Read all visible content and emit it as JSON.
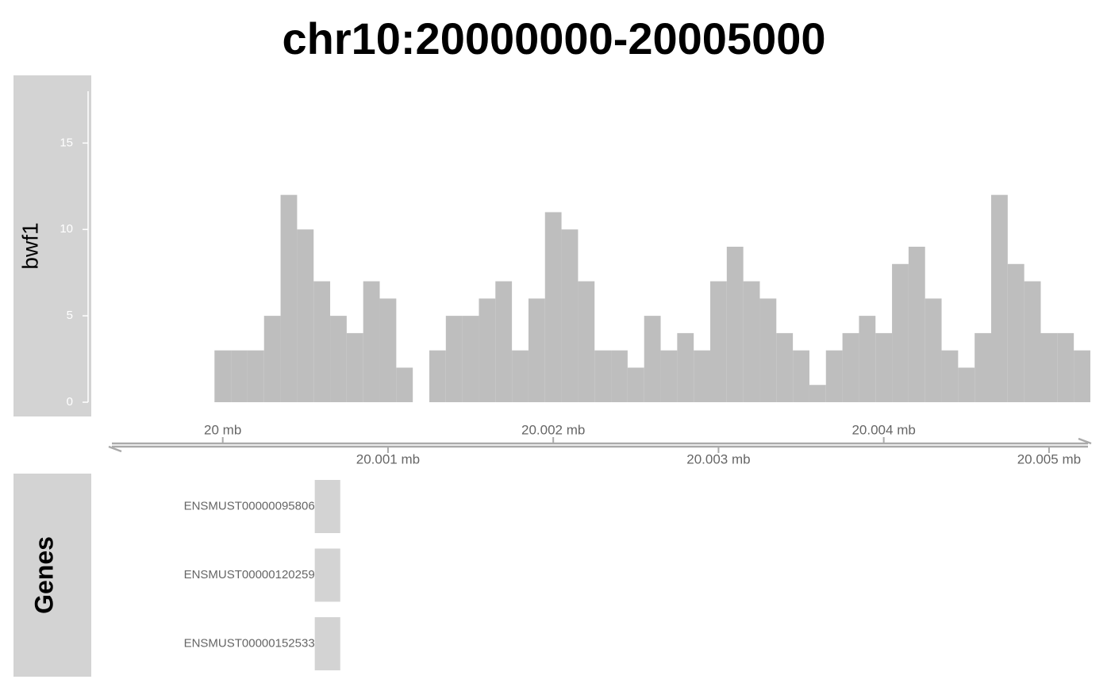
{
  "chart_data": [
    {
      "type": "histogram",
      "title": "chr10:20000000-20005000",
      "ylabel": "bwf1",
      "color": "#bebebe",
      "bins": [
        19999950,
        20000050,
        20000150,
        20000250,
        20000350,
        20000450,
        20000550,
        20000650,
        20000750,
        20000850,
        20000950,
        20001050,
        20001150,
        20001250,
        20001350,
        20001450,
        20001550,
        20001650,
        20001750,
        20001850,
        20001950,
        20002050,
        20002150,
        20002250,
        20002350,
        20002450,
        20002550,
        20002650,
        20002750,
        20002850,
        20002950,
        20003050,
        20003150,
        20003250,
        20003350,
        20003450,
        20003550,
        20003650,
        20003750,
        20003850,
        20003950,
        20004050,
        20004150,
        20004250,
        20004350,
        20004450,
        20004550,
        20004650,
        20004750,
        20004850,
        20004950,
        20005050,
        20005150,
        20005250
      ],
      "counts": [
        3,
        3,
        3,
        5,
        12,
        10,
        7,
        5,
        4,
        7,
        6,
        2,
        0,
        3,
        5,
        5,
        6,
        7,
        3,
        6,
        11,
        10,
        7,
        3,
        3,
        2,
        5,
        3,
        4,
        3,
        7,
        9,
        7,
        6,
        4,
        3,
        1,
        3,
        4,
        5,
        4,
        8,
        9,
        6,
        3,
        2,
        4,
        12,
        8,
        7,
        4,
        4,
        3
      ],
      "xlim": [
        19999310,
        20005255
      ],
      "xticks": [
        {
          "value": 20000000,
          "label": "20 mb"
        },
        {
          "value": 20001000,
          "label": "20.001 mb"
        },
        {
          "value": 20002000,
          "label": "20.002 mb"
        },
        {
          "value": 20003000,
          "label": "20.003 mb"
        },
        {
          "value": 20004000,
          "label": "20.004 mb"
        },
        {
          "value": 20005000,
          "label": "20.005 mb"
        }
      ],
      "ylim": [
        0,
        18
      ],
      "yticks": [
        0,
        5,
        10,
        15
      ]
    },
    {
      "type": "gene",
      "ylabel": "Genes",
      "color": "#d3d3d3",
      "xlim": [
        19999310,
        20005255
      ],
      "categories": [
        "ENSMUST00000095806",
        "ENSMUST00000120259",
        "ENSMUST00000152533"
      ],
      "start": [
        20000557,
        20000557,
        20000557
      ],
      "end": [
        20000711,
        20000711,
        20000711
      ]
    }
  ]
}
